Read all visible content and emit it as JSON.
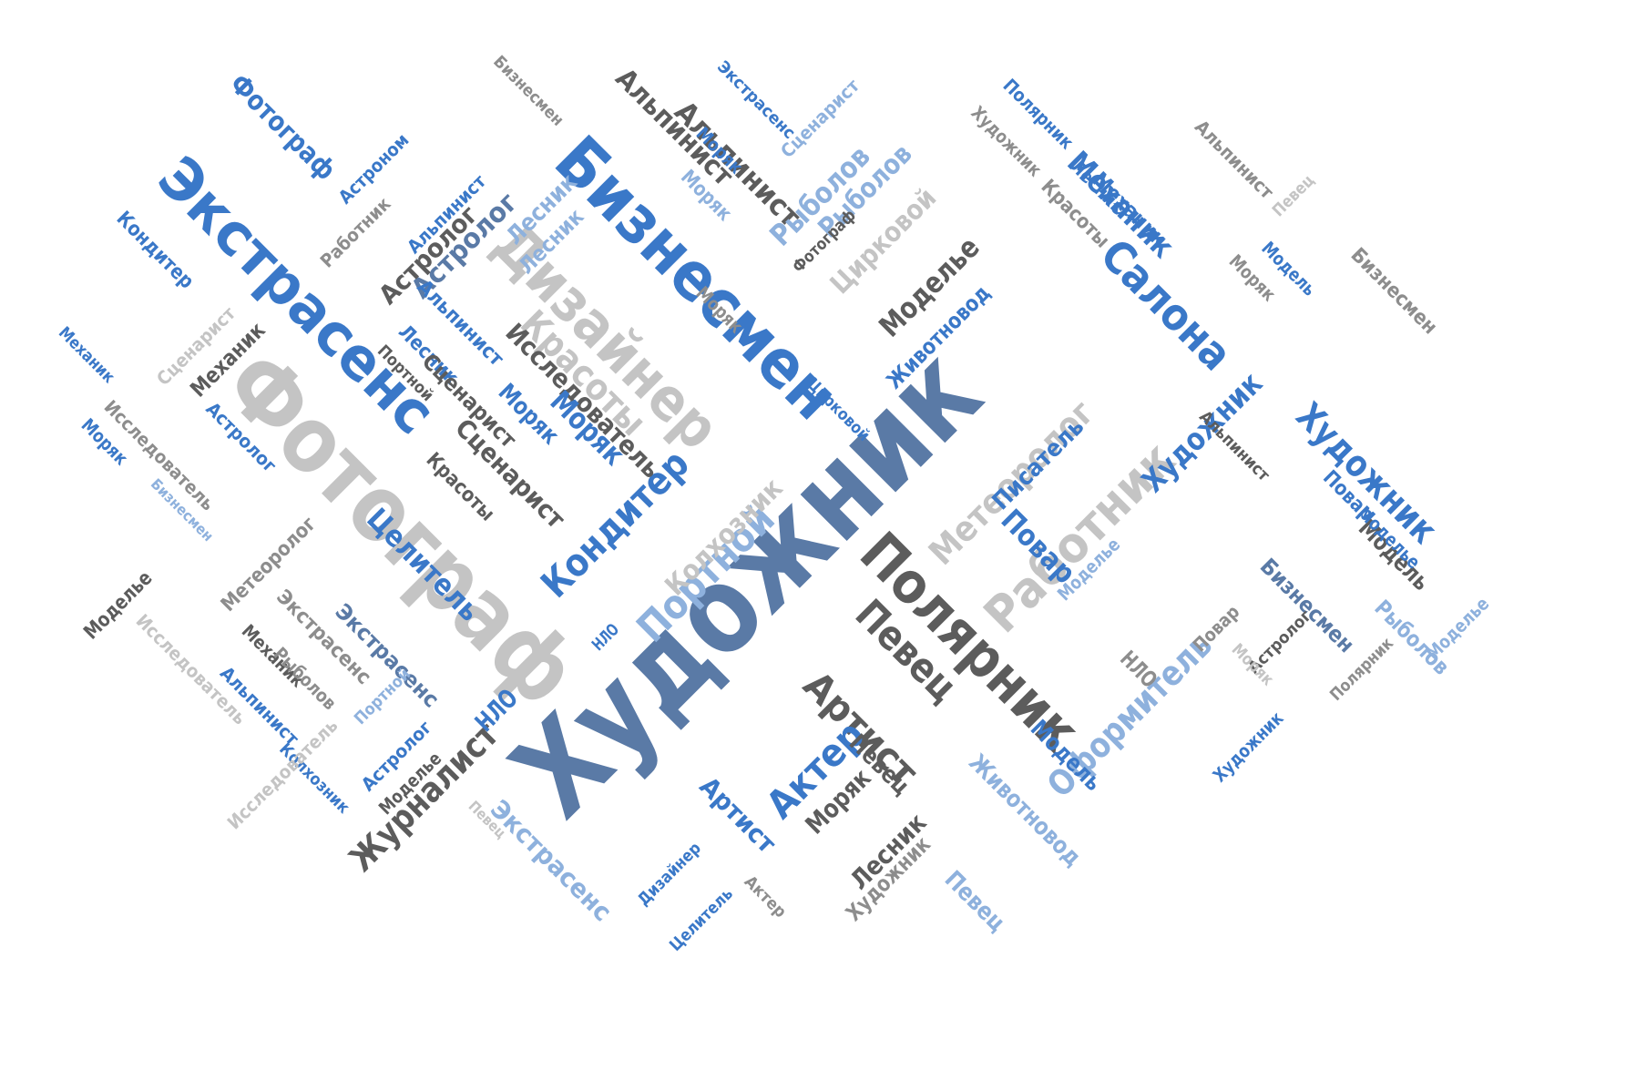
{
  "word_cloud": {
    "palette": {
      "blue": "#3a78c8",
      "slate": "#5a7aa6",
      "dark": "#5c5c5c",
      "gray": "#8d8d8d",
      "light": "#c4c4c4",
      "pale": "#8eb1dd"
    },
    "words": [
      {
        "text": "Художник",
        "color": "slate"
      },
      {
        "text": "Фотограф",
        "color": "light"
      },
      {
        "text": "Бизнесмен",
        "color": "blue"
      },
      {
        "text": "Экстрасенс",
        "color": "blue"
      },
      {
        "text": "Дизайнер",
        "color": "light"
      },
      {
        "text": "Полярник",
        "color": "dark"
      },
      {
        "text": "Работник",
        "color": "light"
      },
      {
        "text": "Салона",
        "color": "blue"
      },
      {
        "text": "Художник",
        "color": "blue"
      },
      {
        "text": "Певец",
        "color": "dark"
      },
      {
        "text": "Красоты",
        "color": "light"
      },
      {
        "text": "Кондитер",
        "color": "blue"
      },
      {
        "text": "Портной",
        "color": "pale"
      },
      {
        "text": "Артист",
        "color": "dark"
      },
      {
        "text": "Оформитель",
        "color": "pale"
      },
      {
        "text": "Журналист",
        "color": "dark"
      },
      {
        "text": "Актер",
        "color": "blue"
      },
      {
        "text": "Метеоролог",
        "color": "light"
      },
      {
        "text": "Механик",
        "color": "blue"
      },
      {
        "text": "Художник",
        "color": "blue"
      },
      {
        "text": "Исследователь",
        "color": "dark"
      },
      {
        "text": "Моделье",
        "color": "dark"
      },
      {
        "text": "Целитель",
        "color": "blue"
      },
      {
        "text": "Альпинист",
        "color": "dark"
      },
      {
        "text": "Фотограф",
        "color": "blue"
      },
      {
        "text": "Колхозник",
        "color": "light"
      },
      {
        "text": "Рыболов",
        "color": "pale"
      },
      {
        "text": "Цирковой",
        "color": "light"
      },
      {
        "text": "Животновод",
        "color": "blue"
      },
      {
        "text": "Писатель",
        "color": "blue"
      },
      {
        "text": "Повар",
        "color": "blue"
      },
      {
        "text": "Моряк",
        "color": "blue"
      },
      {
        "text": "Сценарист",
        "color": "dark"
      },
      {
        "text": "Модель",
        "color": "blue"
      },
      {
        "text": "Лесник",
        "color": "pale"
      },
      {
        "text": "Астролог",
        "color": "slate"
      },
      {
        "text": "Экстрасенс",
        "color": "pale"
      },
      {
        "text": "Животновод",
        "color": "pale"
      },
      {
        "text": "Моряк",
        "color": "dark"
      },
      {
        "text": "Лесник",
        "color": "dark"
      },
      {
        "text": "Художник",
        "color": "gray"
      },
      {
        "text": "Певец",
        "color": "pale"
      },
      {
        "text": "Экстрасенс",
        "color": "slate"
      },
      {
        "text": "Артист",
        "color": "blue"
      },
      {
        "text": "Певец",
        "color": "dark"
      },
      {
        "text": "НЛО",
        "color": "blue"
      },
      {
        "text": "НЛО",
        "color": "gray"
      },
      {
        "text": "Модель",
        "color": "dark"
      },
      {
        "text": "Бизнесмен",
        "color": "slate"
      },
      {
        "text": "Повар",
        "color": "blue"
      },
      {
        "text": "Рыболов",
        "color": "pale"
      },
      {
        "text": "Моделье",
        "color": "pale"
      },
      {
        "text": "Бизнесмен",
        "color": "gray"
      },
      {
        "text": "Модель",
        "color": "blue"
      },
      {
        "text": "Моряк",
        "color": "gray"
      },
      {
        "text": "Певец",
        "color": "light"
      },
      {
        "text": "Альпинист",
        "color": "gray"
      },
      {
        "text": "Моряк",
        "color": "blue"
      },
      {
        "text": "Механик",
        "color": "blue"
      },
      {
        "text": "Поляpник",
        "color": "blue"
      },
      {
        "text": "Художник",
        "color": "gray"
      },
      {
        "text": "Лесник",
        "color": "blue"
      },
      {
        "text": "Красоты",
        "color": "gray"
      },
      {
        "text": "Бизнесмен",
        "color": "gray"
      },
      {
        "text": "Альпинист",
        "color": "dark"
      },
      {
        "text": "Экстрасенс",
        "color": "blue"
      },
      {
        "text": "Сценарист",
        "color": "pale"
      },
      {
        "text": "Рыболов",
        "color": "pale"
      },
      {
        "text": "Моряк",
        "color": "pale"
      },
      {
        "text": "Фотограф",
        "color": "dark"
      },
      {
        "text": "Цирковой",
        "color": "blue"
      },
      {
        "text": "Моряк",
        "color": "gray"
      },
      {
        "text": "Астроном",
        "color": "blue"
      },
      {
        "text": "Работник",
        "color": "gray"
      },
      {
        "text": "Альпинист",
        "color": "blue"
      },
      {
        "text": "Астролог",
        "color": "dark"
      },
      {
        "text": "Лесник",
        "color": "pale"
      },
      {
        "text": "Кондитер",
        "color": "blue"
      },
      {
        "text": "Сценарист",
        "color": "light"
      },
      {
        "text": "Механик",
        "color": "dark"
      },
      {
        "text": "Механик",
        "color": "blue"
      },
      {
        "text": "Моряк",
        "color": "blue"
      },
      {
        "text": "Исследователь",
        "color": "gray"
      },
      {
        "text": "Бизнесмен",
        "color": "pale"
      },
      {
        "text": "Астролог",
        "color": "blue"
      },
      {
        "text": "Моделье",
        "color": "dark"
      },
      {
        "text": "Метеоролог",
        "color": "gray"
      },
      {
        "text": "Исследователь",
        "color": "light"
      },
      {
        "text": "Экстрасенс",
        "color": "gray"
      },
      {
        "text": "Механик",
        "color": "dark"
      },
      {
        "text": "Рыболов",
        "color": "gray"
      },
      {
        "text": "Альпинист",
        "color": "blue"
      },
      {
        "text": "Портной",
        "color": "pale"
      },
      {
        "text": "Астролог",
        "color": "blue"
      },
      {
        "text": "Колхозник",
        "color": "blue"
      },
      {
        "text": "Исследователь",
        "color": "light"
      },
      {
        "text": "Моделье",
        "color": "dark"
      },
      {
        "text": "Портной",
        "color": "dark"
      },
      {
        "text": "Альпинист",
        "color": "blue"
      },
      {
        "text": "Лесник",
        "color": "blue"
      },
      {
        "text": "Сценарист",
        "color": "dark"
      },
      {
        "text": "Красоты",
        "color": "dark"
      },
      {
        "text": "Моряк",
        "color": "blue"
      },
      {
        "text": "НЛО",
        "color": "blue"
      },
      {
        "text": "Художник",
        "color": "blue"
      },
      {
        "text": "Альпинист",
        "color": "dark"
      },
      {
        "text": "Моделье",
        "color": "blue"
      },
      {
        "text": "Повар",
        "color": "gray"
      },
      {
        "text": "Астролог",
        "color": "dark"
      },
      {
        "text": "Моряк",
        "color": "light"
      },
      {
        "text": "Полярник",
        "color": "gray"
      },
      {
        "text": "Певец",
        "color": "light"
      },
      {
        "text": "Дизайнер",
        "color": "blue"
      },
      {
        "text": "Актер",
        "color": "gray"
      },
      {
        "text": "Целитель",
        "color": "blue"
      },
      {
        "text": "Моделье",
        "color": "pale"
      }
    ]
  }
}
